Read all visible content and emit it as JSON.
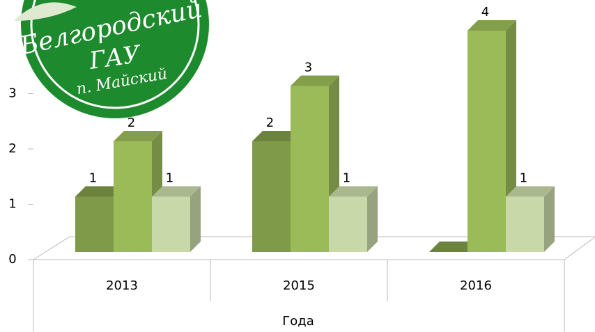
{
  "chart_data": {
    "type": "bar3d",
    "categories": [
      "2013",
      "2015",
      "2016"
    ],
    "series": [
      {
        "color": "#7f9a48",
        "values": [
          1,
          2,
          0
        ],
        "value_labels": [
          "1",
          "2",
          null
        ]
      },
      {
        "color": "#9bbb59",
        "values": [
          2,
          3,
          4
        ]
      },
      {
        "color": "#c9d8a8",
        "values": [
          1,
          1,
          1
        ]
      }
    ],
    "ylim": [
      0,
      4
    ],
    "yticks": [
      0,
      1,
      2,
      3
    ],
    "x_label": "Года"
  },
  "logo": {
    "line1": "Белгородский",
    "line2": "ГАУ",
    "line3": "п. Майский"
  }
}
